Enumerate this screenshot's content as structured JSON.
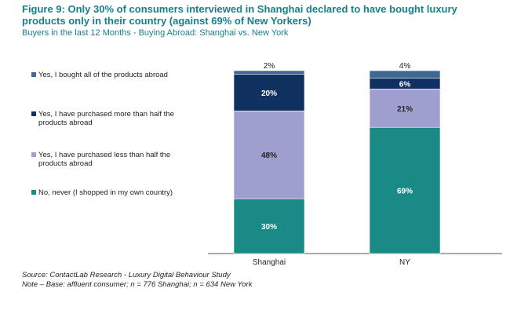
{
  "title": "Figure 9: Only 30% of consumers interviewed in Shanghai declared to have bought luxury products only in their country (against 69% of New Yorkers)",
  "subtitle": "Buyers in the last 12 Months - Buying Abroad: Shanghai vs. New York",
  "source_line1": "Source: ContactLab Research - Luxury Digital Behaviour Study",
  "source_line2": "Note – Base: affluent consumer; n = 776 Shanghai; n = 634 New York",
  "chart_data": {
    "type": "bar",
    "stacked": true,
    "categories": [
      "Shanghai",
      "NY"
    ],
    "series": [
      {
        "name": "No, never (I shopped in my own country)",
        "values": [
          30,
          69
        ],
        "color": "#1a8a86",
        "label_color": "#ffffff",
        "labels": [
          "30%",
          "69%"
        ]
      },
      {
        "name": "Yes, I have purchased less than half the products abroad",
        "values": [
          48,
          21
        ],
        "color": "#9f9fcf",
        "label_color": "#222222",
        "labels": [
          "48%",
          "21%"
        ]
      },
      {
        "name": "Yes, I have purchased more than half the products abroad",
        "values": [
          20,
          6
        ],
        "color": "#10315f",
        "label_color": "#ffffff",
        "labels": [
          "20%",
          "6%"
        ]
      },
      {
        "name": "Yes, I bought all of the products abroad",
        "values": [
          2,
          4
        ],
        "color": "#3d6a94",
        "label_color": "#222222",
        "labels": [
          "2%",
          "4%"
        ]
      }
    ],
    "ylim": [
      0,
      100
    ],
    "legend_position": "left"
  }
}
